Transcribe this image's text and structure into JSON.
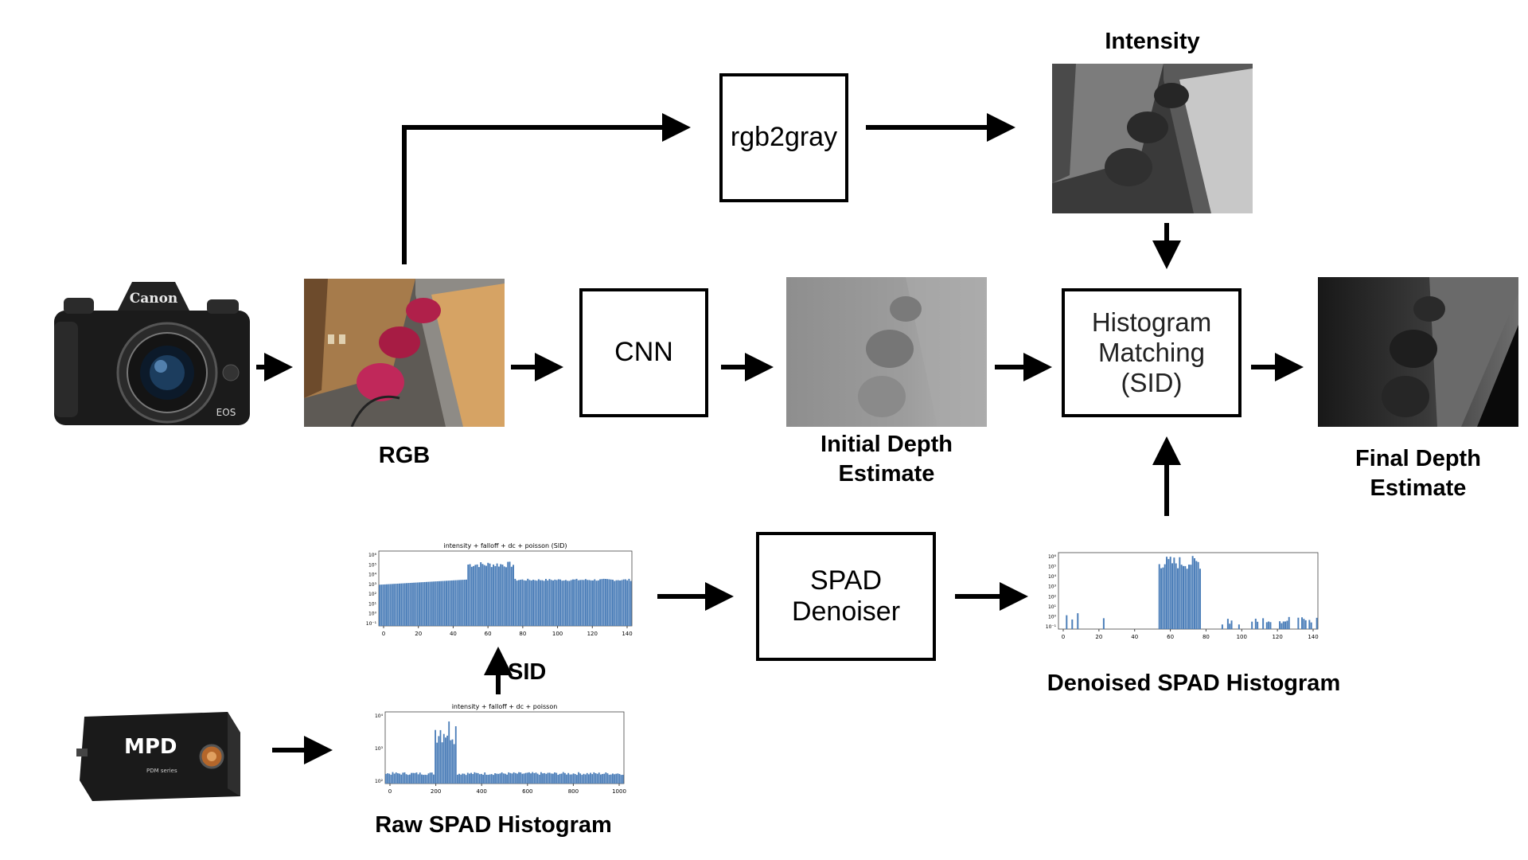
{
  "boxes": {
    "rgb2gray": "rgb2gray",
    "cnn": "CNN",
    "histogram_matching": "Histogram\nMatching\n(SID)",
    "spad_denoiser": "SPAD\nDenoiser"
  },
  "labels": {
    "intensity": "Intensity",
    "rgb": "RGB",
    "initial_depth": "Initial Depth\nEstimate",
    "final_depth": "Final Depth\nEstimate",
    "denoised_spad": "Denoised SPAD Histogram",
    "raw_spad": "Raw SPAD Histogram",
    "sid": "SID"
  },
  "camera": {
    "brand": "Canon",
    "model": "EOS"
  },
  "spad_device": {
    "brand": "MPD",
    "series": "PDM series"
  },
  "histograms": {
    "sid_hist": {
      "title": "intensity + falloff + dc + poisson (SID)",
      "xticks": [
        "0",
        "20",
        "40",
        "60",
        "80",
        "100",
        "120",
        "140"
      ],
      "yticks": [
        "10⁶",
        "10⁵",
        "10⁴",
        "10³",
        "10²",
        "10¹",
        "10⁰",
        "10⁻¹"
      ]
    },
    "raw_hist": {
      "title": "intensity + falloff + dc + poisson",
      "xticks": [
        "0",
        "200",
        "400",
        "600",
        "800",
        "1000"
      ],
      "yticks": [
        "10⁴",
        "10³",
        "10²"
      ]
    },
    "denoised_hist": {
      "title": "",
      "xticks": [
        "0",
        "20",
        "40",
        "60",
        "80",
        "100",
        "120",
        "140"
      ],
      "yticks": [
        "10⁶",
        "10⁵",
        "10⁴",
        "10³",
        "10²",
        "10¹",
        "10⁰",
        "10⁻¹"
      ]
    }
  },
  "colors": {
    "bar": "#4a7db8",
    "arrow": "#000000"
  }
}
